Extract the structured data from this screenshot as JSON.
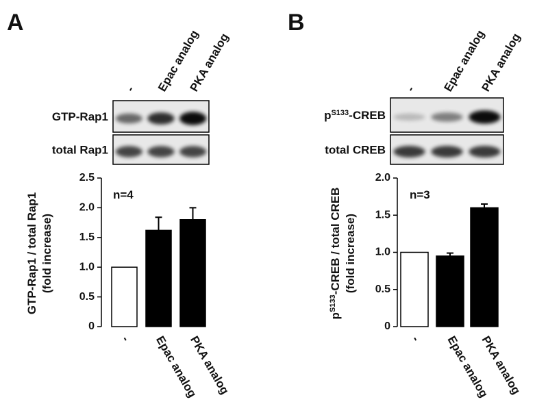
{
  "chart_data": [
    {
      "type": "bar",
      "panel": "A",
      "blot_rows": [
        [
          "GTP-Rap1"
        ],
        [
          "total Rap1"
        ]
      ],
      "categories": [
        "-",
        "Epac analog",
        "PKA analog"
      ],
      "values": [
        1.0,
        1.62,
        1.8
      ],
      "errors": [
        null,
        0.22,
        0.2
      ],
      "colors": [
        "#ffffff",
        "#000000",
        "#000000"
      ],
      "ylabel": [
        [
          "GTP-Rap1 / total Rap1"
        ],
        [
          "(fold increase)"
        ]
      ],
      "annotation": "n=4",
      "ylim": [
        0,
        2.5
      ],
      "yticks": [
        0,
        0.5,
        {
          "value": 1,
          "label": "1.0"
        },
        1.5,
        {
          "value": 2,
          "label": "2.0"
        },
        2.5
      ]
    },
    {
      "type": "bar",
      "panel": "B",
      "blot_rows": [
        [
          "p",
          "S133",
          "-CREB"
        ],
        [
          "total CREB"
        ]
      ],
      "categories": [
        "-",
        "Epac analog",
        "PKA analog"
      ],
      "values": [
        1.0,
        0.95,
        1.6
      ],
      "errors": [
        null,
        0.04,
        0.05
      ],
      "colors": [
        "#ffffff",
        "#000000",
        "#000000"
      ],
      "ylabel": [
        [
          "p",
          "S133",
          "-CREB / total CREB"
        ],
        [
          "(fold increase)"
        ]
      ],
      "annotation": "n=3",
      "ylim": [
        0,
        2.0
      ],
      "yticks": [
        0,
        0.5,
        {
          "value": 1,
          "label": "1.0"
        },
        1.5,
        {
          "value": 2,
          "label": "2.0"
        }
      ]
    }
  ]
}
